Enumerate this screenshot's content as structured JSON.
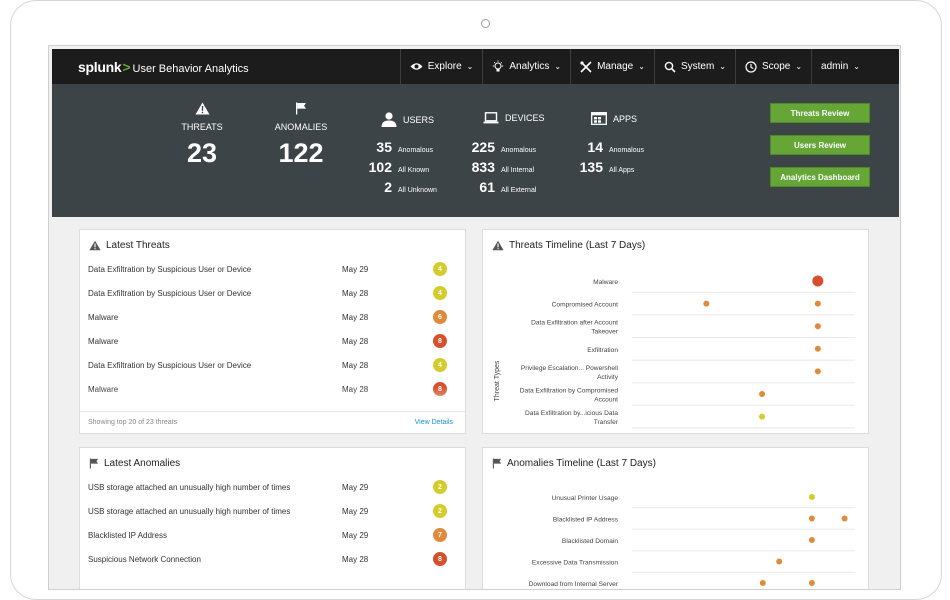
{
  "brand": {
    "logo": "splunk",
    "chevron": ">",
    "app_name": "User Behavior Analytics"
  },
  "nav": [
    {
      "label": "Explore",
      "icon": "eye-icon"
    },
    {
      "label": "Analytics",
      "icon": "lightbulb-icon"
    },
    {
      "label": "Manage",
      "icon": "tools-icon"
    },
    {
      "label": "System",
      "icon": "search-icon"
    },
    {
      "label": "Scope",
      "icon": "clock-icon"
    },
    {
      "label": "admin",
      "icon": ""
    }
  ],
  "summary": {
    "threats": {
      "label": "THREATS",
      "value": "23"
    },
    "anomalies": {
      "label": "ANOMALIES",
      "value": "122"
    },
    "users": {
      "label": "USERS",
      "rows": [
        {
          "n": "35",
          "t": "Anomalous"
        },
        {
          "n": "102",
          "t": "All Known"
        },
        {
          "n": "2",
          "t": "All Unknown"
        }
      ]
    },
    "devices": {
      "label": "DEVICES",
      "rows": [
        {
          "n": "225",
          "t": "Anomalous"
        },
        {
          "n": "833",
          "t": "All Internal"
        },
        {
          "n": "61",
          "t": "All External"
        }
      ]
    },
    "apps": {
      "label": "APPS",
      "rows": [
        {
          "n": "14",
          "t": "Anomalous"
        },
        {
          "n": "135",
          "t": "All Apps"
        }
      ]
    },
    "buttons": [
      "Threats Review",
      "Users Review",
      "Analytics Dashboard"
    ]
  },
  "latest_threats": {
    "title": "Latest Threats",
    "rows": [
      {
        "name": "Data Exfiltration by Suspicious User or Device",
        "date": "May 29",
        "score": "4",
        "color": "#d4cc2a"
      },
      {
        "name": "Data Exfiltration by Suspicious User or Device",
        "date": "May 28",
        "score": "4",
        "color": "#d4cc2a"
      },
      {
        "name": "Malware",
        "date": "May 28",
        "score": "6",
        "color": "#e08a3c"
      },
      {
        "name": "Malware",
        "date": "May 28",
        "score": "8",
        "color": "#d6502e"
      },
      {
        "name": "Data Exfiltration by Suspicious User or Device",
        "date": "May 28",
        "score": "4",
        "color": "#d4cc2a"
      },
      {
        "name": "Malware",
        "date": "May 28",
        "score": "8",
        "color": "#d6502e"
      }
    ],
    "footer_text": "Showing top 20 of 23 threats",
    "footer_link": "View Details"
  },
  "threats_timeline": {
    "title": "Threats Timeline (Last 7 Days)",
    "y_axis_title": "Threat Types"
  },
  "latest_anomalies": {
    "title": "Latest Anomalies",
    "rows": [
      {
        "name": "USB storage attached an unusually high number of times",
        "date": "May 29",
        "score": "2",
        "color": "#d4cc2a"
      },
      {
        "name": "USB storage attached an unusually high number of times",
        "date": "May 29",
        "score": "2",
        "color": "#d4cc2a"
      },
      {
        "name": "Blacklisted IP Address",
        "date": "May 29",
        "score": "7",
        "color": "#e08a3c"
      },
      {
        "name": "Suspicious Network Connection",
        "date": "May 28",
        "score": "8",
        "color": "#d6502e"
      }
    ]
  },
  "anomalies_timeline": {
    "title": "Anomalies Timeline (Last 7 Days)"
  },
  "chart_data": [
    {
      "type": "scatter",
      "title": "Threats Timeline (Last 7 Days)",
      "ylabel": "Threat Types",
      "categories": [
        "Malware",
        "Compromised Account",
        "Data Exfiltration after Account Takeover",
        "Exfiltration",
        "Privilege Escalation... Powershell Activity",
        "Data Exfiltration by Compromised Account",
        "Data Exfiltration by...icious Data Transfer"
      ],
      "x_range_days": [
        1,
        7
      ],
      "points": [
        {
          "category": "Malware",
          "day": 6,
          "color": "#d6502e",
          "size": "large"
        },
        {
          "category": "Compromised Account",
          "day": 3,
          "color": "#e08a3c",
          "size": "small"
        },
        {
          "category": "Compromised Account",
          "day": 6,
          "color": "#e08a3c",
          "size": "small"
        },
        {
          "category": "Data Exfiltration after Account Takeover",
          "day": 6,
          "color": "#e08a3c",
          "size": "small"
        },
        {
          "category": "Exfiltration",
          "day": 6,
          "color": "#e08a3c",
          "size": "small"
        },
        {
          "category": "Privilege Escalation... Powershell Activity",
          "day": 6,
          "color": "#e08a3c",
          "size": "small"
        },
        {
          "category": "Data Exfiltration by Compromised Account",
          "day": 4.5,
          "color": "#e08a3c",
          "size": "small"
        },
        {
          "category": "Data Exfiltration by...icious Data Transfer",
          "day": 4.5,
          "color": "#d4cc2a",
          "size": "small"
        }
      ]
    },
    {
      "type": "scatter",
      "title": "Anomalies Timeline (Last 7 Days)",
      "categories": [
        "Unusual Printer Usage",
        "Blacklisted IP Address",
        "Blacklisted Domain",
        "Excessive Data Transmission",
        "Download from Internal Server"
      ],
      "x_range_days": [
        1,
        7
      ],
      "points": [
        {
          "category": "Unusual Printer Usage",
          "day": 6.5,
          "color": "#d4cc2a",
          "size": "small"
        },
        {
          "category": "Blacklisted IP Address",
          "day": 6.5,
          "color": "#e08a3c",
          "size": "small"
        },
        {
          "category": "Blacklisted IP Address",
          "day": 7.5,
          "color": "#e08a3c",
          "size": "small"
        },
        {
          "category": "Blacklisted Domain",
          "day": 6.5,
          "color": "#e08a3c",
          "size": "small"
        },
        {
          "category": "Excessive Data Transmission",
          "day": 5.5,
          "color": "#e08a3c",
          "size": "small"
        },
        {
          "category": "Download from Internal Server",
          "day": 5,
          "color": "#e08a3c",
          "size": "small"
        },
        {
          "category": "Download from Internal Server",
          "day": 6.5,
          "color": "#e08a3c",
          "size": "small"
        }
      ]
    }
  ]
}
